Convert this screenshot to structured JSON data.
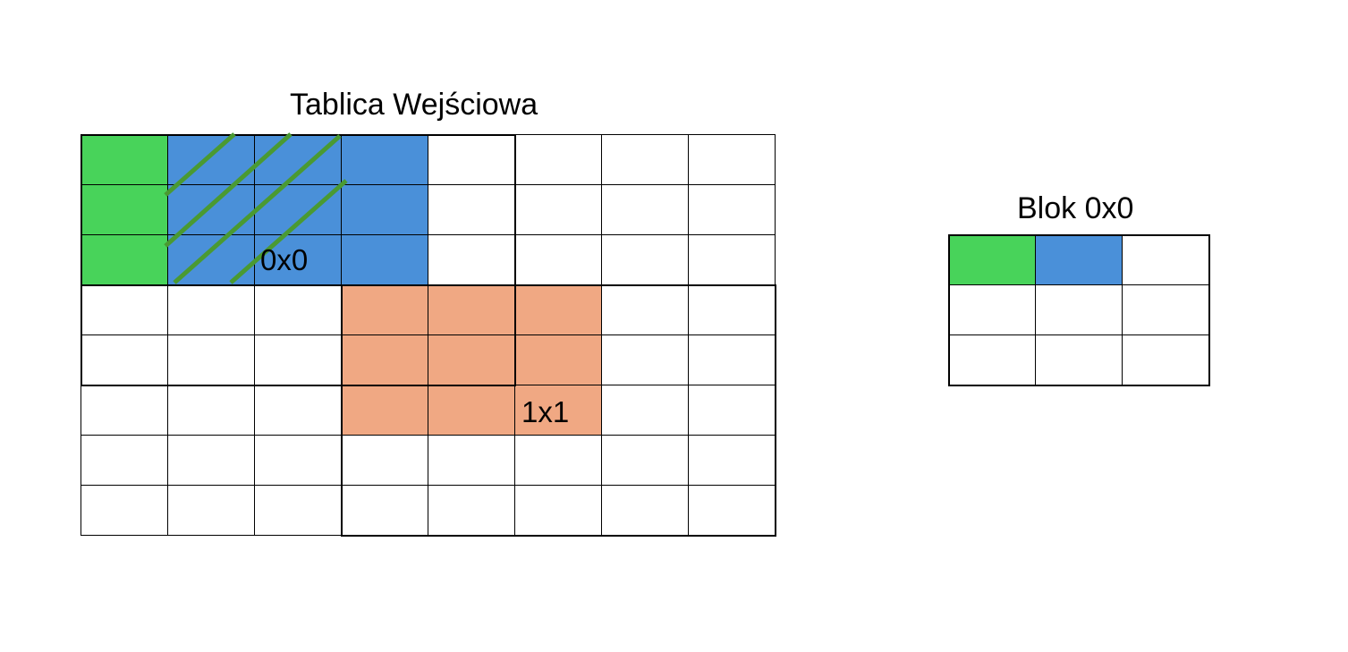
{
  "main_grid": {
    "title": "Tablica Wejściowa",
    "rows": 8,
    "cols": 8,
    "colors": {
      "green": "#48d35a",
      "blue": "#4a90d9",
      "orange": "#f0a883",
      "hatch": "#4a9a32"
    },
    "cell_fills": [
      [
        "green",
        "blue",
        "blue",
        "blue",
        "",
        "",
        "",
        ""
      ],
      [
        "green",
        "blue",
        "blue",
        "blue",
        "",
        "",
        "",
        ""
      ],
      [
        "green",
        "blue",
        "blue",
        "blue",
        "",
        "",
        "",
        ""
      ],
      [
        "",
        "",
        "",
        "orange",
        "orange",
        "orange",
        "",
        ""
      ],
      [
        "",
        "",
        "",
        "orange",
        "orange",
        "orange",
        "",
        ""
      ],
      [
        "",
        "",
        "",
        "orange",
        "orange",
        "orange",
        "",
        ""
      ],
      [
        "",
        "",
        "",
        "",
        "",
        "",
        "",
        ""
      ],
      [
        "",
        "",
        "",
        "",
        "",
        "",
        "",
        ""
      ]
    ],
    "block_labels": {
      "block_0x0": "0x0",
      "block_1x1": "1x1"
    }
  },
  "side_grid": {
    "title": "Blok 0x0",
    "rows": 3,
    "cols": 3,
    "cell_fills": [
      [
        "green",
        "blue",
        ""
      ],
      [
        "",
        "",
        ""
      ],
      [
        "",
        "",
        ""
      ]
    ]
  }
}
